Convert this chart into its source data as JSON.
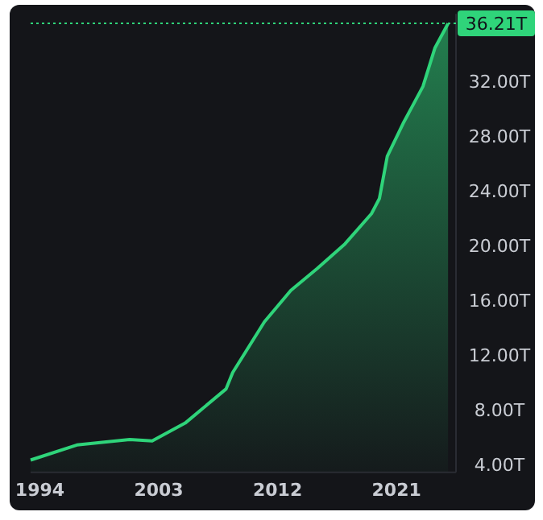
{
  "chart_data": {
    "type": "area",
    "x": [
      1993.3,
      1996.8,
      2000.8,
      2002.5,
      2005,
      2008.1,
      2008.6,
      2011,
      2013,
      2015,
      2017.1,
      2019.1,
      2019.7,
      2020.3,
      2021.5,
      2023,
      2023.9,
      2024.9
    ],
    "series": [
      {
        "color": "#2fd47a",
        "values": [
          4.3,
          5.4,
          5.8,
          5.7,
          7.0,
          9.5,
          10.7,
          14.4,
          16.7,
          18.3,
          20.1,
          22.3,
          23.4,
          26.5,
          28.9,
          31.6,
          34.4,
          36.2
        ]
      }
    ],
    "xlim": [
      1993.3,
      2025.5
    ],
    "xticks": [
      1994,
      2003,
      2012,
      2021
    ],
    "ylim": [
      3.4,
      36.9
    ],
    "yticks": [
      {
        "value": 4,
        "label": "4.00T"
      },
      {
        "value": 8,
        "label": "8.00T"
      },
      {
        "value": 12,
        "label": "12.00T"
      },
      {
        "value": 16,
        "label": "16.00T"
      },
      {
        "value": 20,
        "label": "20.00T"
      },
      {
        "value": 24,
        "label": "24.00T"
      },
      {
        "value": 28,
        "label": "28.00T"
      },
      {
        "value": 32,
        "label": "32.00T"
      }
    ],
    "ref_lines": [
      {
        "axis": "y",
        "value": 36.21,
        "label": "36.21T",
        "color": "#2fd47a",
        "line_style": "dotted"
      }
    ],
    "grid": false
  }
}
